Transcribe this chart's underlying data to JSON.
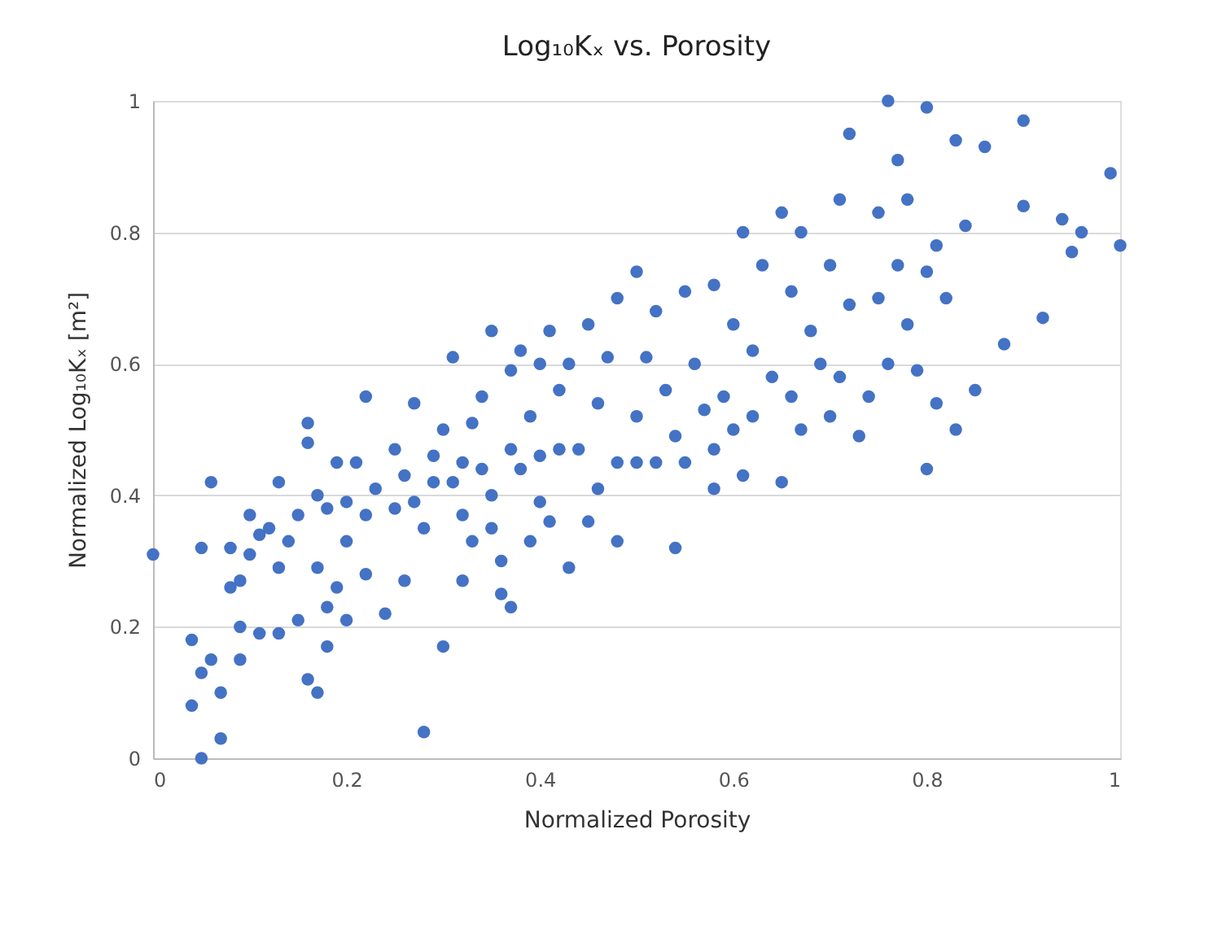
{
  "chart_data": {
    "type": "scatter",
    "title": "Log₁₀Kₓ vs. Porosity",
    "xlabel": "Normalized Porosity",
    "ylabel": "Normalized Log₁₀Kₓ [m²]",
    "xlim": [
      0,
      1
    ],
    "ylim": [
      0,
      1
    ],
    "xticks": [
      0,
      0.2,
      0.4,
      0.6,
      0.8,
      1
    ],
    "yticks": [
      0,
      0.2,
      0.4,
      0.6,
      0.8,
      1
    ],
    "grid": "y",
    "marker": "circle",
    "series": [
      {
        "color": "#4472c4",
        "x": [
          0,
          0.04,
          0.04,
          0.05,
          0.05,
          0.05,
          0.06,
          0.06,
          0.07,
          0.07,
          0.08,
          0.08,
          0.09,
          0.09,
          0.09,
          0.1,
          0.1,
          0.11,
          0.11,
          0.12,
          0.13,
          0.13,
          0.13,
          0.14,
          0.15,
          0.15,
          0.16,
          0.16,
          0.16,
          0.17,
          0.17,
          0.17,
          0.18,
          0.18,
          0.18,
          0.19,
          0.19,
          0.2,
          0.2,
          0.2,
          0.21,
          0.22,
          0.22,
          0.22,
          0.23,
          0.24,
          0.25,
          0.25,
          0.26,
          0.26,
          0.27,
          0.27,
          0.28,
          0.28,
          0.29,
          0.29,
          0.3,
          0.3,
          0.31,
          0.31,
          0.32,
          0.32,
          0.32,
          0.33,
          0.33,
          0.34,
          0.34,
          0.35,
          0.35,
          0.35,
          0.36,
          0.36,
          0.37,
          0.37,
          0.37,
          0.38,
          0.38,
          0.39,
          0.39,
          0.4,
          0.4,
          0.4,
          0.41,
          0.41,
          0.42,
          0.42,
          0.43,
          0.43,
          0.44,
          0.45,
          0.45,
          0.46,
          0.46,
          0.47,
          0.48,
          0.48,
          0.48,
          0.5,
          0.5,
          0.5,
          0.51,
          0.52,
          0.52,
          0.53,
          0.54,
          0.54,
          0.55,
          0.55,
          0.56,
          0.57,
          0.58,
          0.58,
          0.58,
          0.59,
          0.6,
          0.6,
          0.61,
          0.61,
          0.62,
          0.62,
          0.63,
          0.64,
          0.65,
          0.65,
          0.66,
          0.66,
          0.67,
          0.67,
          0.68,
          0.69,
          0.7,
          0.7,
          0.71,
          0.71,
          0.72,
          0.72,
          0.73,
          0.74,
          0.75,
          0.75,
          0.76,
          0.76,
          0.77,
          0.77,
          0.78,
          0.78,
          0.79,
          0.8,
          0.8,
          0.8,
          0.81,
          0.81,
          0.82,
          0.83,
          0.83,
          0.84,
          0.85,
          0.86,
          0.88,
          0.9,
          0.9,
          0.92,
          0.94,
          0.95,
          0.96,
          0.99,
          1.0
        ],
        "values": [
          0.31,
          0.18,
          0.08,
          0.0,
          0.32,
          0.13,
          0.15,
          0.42,
          0.03,
          0.1,
          0.26,
          0.32,
          0.2,
          0.15,
          0.27,
          0.31,
          0.37,
          0.34,
          0.19,
          0.35,
          0.42,
          0.29,
          0.19,
          0.33,
          0.21,
          0.37,
          0.48,
          0.51,
          0.12,
          0.1,
          0.29,
          0.4,
          0.38,
          0.23,
          0.17,
          0.45,
          0.26,
          0.39,
          0.33,
          0.21,
          0.45,
          0.37,
          0.28,
          0.55,
          0.41,
          0.22,
          0.38,
          0.47,
          0.43,
          0.27,
          0.39,
          0.54,
          0.04,
          0.35,
          0.42,
          0.46,
          0.5,
          0.17,
          0.61,
          0.42,
          0.37,
          0.27,
          0.45,
          0.51,
          0.33,
          0.55,
          0.44,
          0.65,
          0.4,
          0.35,
          0.3,
          0.25,
          0.47,
          0.59,
          0.23,
          0.44,
          0.62,
          0.52,
          0.33,
          0.46,
          0.6,
          0.39,
          0.65,
          0.36,
          0.56,
          0.47,
          0.29,
          0.6,
          0.47,
          0.66,
          0.36,
          0.54,
          0.41,
          0.61,
          0.7,
          0.45,
          0.33,
          0.74,
          0.52,
          0.45,
          0.61,
          0.68,
          0.45,
          0.56,
          0.32,
          0.49,
          0.71,
          0.45,
          0.6,
          0.53,
          0.72,
          0.41,
          0.47,
          0.55,
          0.66,
          0.5,
          0.8,
          0.43,
          0.62,
          0.52,
          0.75,
          0.58,
          0.83,
          0.42,
          0.71,
          0.55,
          0.8,
          0.5,
          0.65,
          0.6,
          0.75,
          0.52,
          0.85,
          0.58,
          0.95,
          0.69,
          0.49,
          0.55,
          0.7,
          0.83,
          1.0,
          0.6,
          0.91,
          0.75,
          0.66,
          0.85,
          0.59,
          0.99,
          0.44,
          0.74,
          0.78,
          0.54,
          0.7,
          0.94,
          0.5,
          0.81,
          0.56,
          0.93,
          0.63,
          0.97,
          0.84,
          0.67,
          0.82,
          0.77,
          0.8,
          0.89,
          0.78
        ]
      }
    ]
  }
}
